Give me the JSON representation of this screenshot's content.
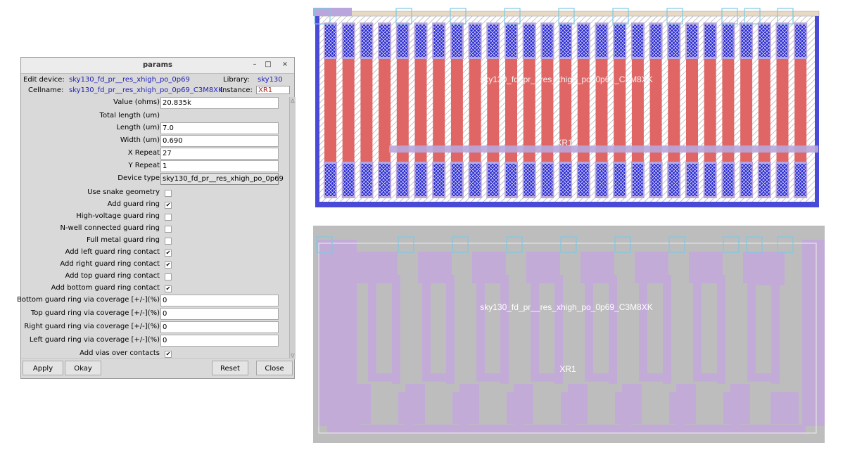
{
  "params_window": {
    "title": "params",
    "controls": {
      "minimize": "–",
      "maximize": "□",
      "close": "×"
    },
    "header": {
      "edit_device_label": "Edit device:",
      "edit_device_value": "sky130_fd_pr__res_xhigh_po_0p69",
      "library_label": "Library:",
      "library_value": "sky130",
      "cellname_label": "Cellname:",
      "cellname_value": "sky130_fd_pr__res_xhigh_po_0p69_C3M8XK",
      "instance_label": "Instance:",
      "instance_value": "XR1"
    },
    "fields": [
      {
        "label": "Value (ohms)",
        "type": "text",
        "value": "20.835k"
      },
      {
        "label": "Total length (um)",
        "type": "none",
        "value": ""
      },
      {
        "label": "Length (um)",
        "type": "text",
        "value": "7.0"
      },
      {
        "label": "Width (um)",
        "type": "text",
        "value": "0.690"
      },
      {
        "label": "X Repeat",
        "type": "text",
        "value": "27"
      },
      {
        "label": "Y Repeat",
        "type": "text",
        "value": "1"
      },
      {
        "label": "Device type",
        "type": "menu",
        "value": "sky130_fd_pr__res_xhigh_po_0p69"
      },
      {
        "label": "Use snake geometry",
        "type": "check",
        "value": ""
      },
      {
        "label": "Add guard ring",
        "type": "check",
        "value": "✔"
      },
      {
        "label": "High-voltage guard ring",
        "type": "check",
        "value": ""
      },
      {
        "label": "N-well connected guard ring",
        "type": "check",
        "value": ""
      },
      {
        "label": "Full metal guard ring",
        "type": "check",
        "value": ""
      },
      {
        "label": "Add left guard ring contact",
        "type": "check",
        "value": "✔"
      },
      {
        "label": "Add right guard ring contact",
        "type": "check",
        "value": "✔"
      },
      {
        "label": "Add top guard ring contact",
        "type": "check",
        "value": ""
      },
      {
        "label": "Add bottom guard ring contact",
        "type": "check",
        "value": "✔"
      },
      {
        "label": "Bottom guard ring via coverage [+/-](%)",
        "type": "text",
        "value": "0"
      },
      {
        "label": "Top guard ring via coverage [+/-](%)",
        "type": "text",
        "value": "0"
      },
      {
        "label": "Right guard ring via coverage [+/-](%)",
        "type": "text",
        "value": "0"
      },
      {
        "label": "Left guard ring via coverage [+/-](%)",
        "type": "text",
        "value": "0"
      },
      {
        "label": "Add vias over contacts",
        "type": "check",
        "value": "✔"
      }
    ],
    "buttons": {
      "apply": "Apply",
      "okay": "Okay",
      "reset": "Reset",
      "close": "Close"
    }
  },
  "layout_top": {
    "cell_label": "sky130_fd_pr__res_xhigh_po_0p69_C3M8XK",
    "instance_label": "XR1",
    "resistor_count": 27,
    "colors": {
      "background": "#ffffff",
      "poly": "#e06666",
      "contact": "#2b2bd0",
      "guard_ring": "#b8a6dc",
      "port_box": "#7ec8e3"
    }
  },
  "layout_bottom": {
    "cell_label": "sky130_fd_pr__res_xhigh_po_0p69_C3M8XK",
    "instance_label": "XR1",
    "colors": {
      "background": "#bdbdbd",
      "metal": "#c3abd8",
      "port_box": "#7ec8e3"
    }
  }
}
